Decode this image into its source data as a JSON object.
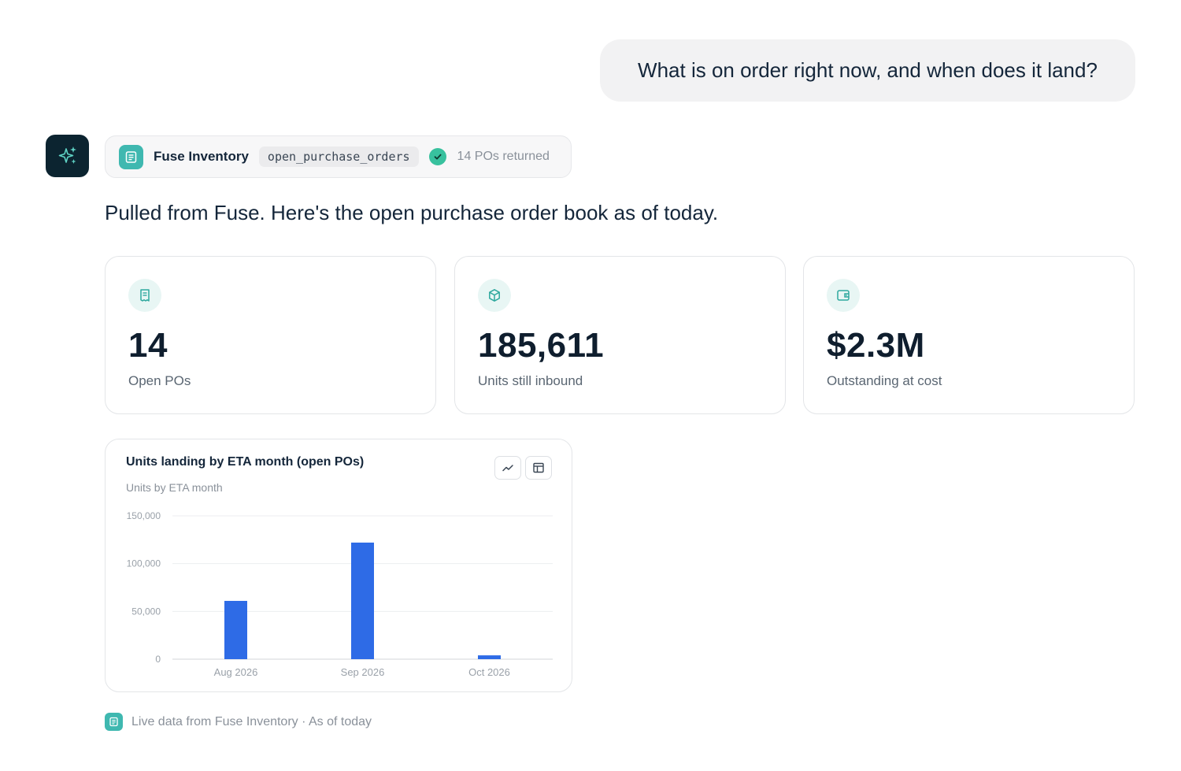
{
  "user_message": "What is on order right now, and when does it land?",
  "tool_call": {
    "source": "Fuse Inventory",
    "function": "open_purchase_orders",
    "status": "14 POs returned"
  },
  "assistant_message": "Pulled from Fuse. Here's the open purchase order book as of today.",
  "stats": [
    {
      "icon": "receipt-icon",
      "value": "14",
      "label": "Open POs"
    },
    {
      "icon": "package-icon",
      "value": "185,611",
      "label": "Units still inbound"
    },
    {
      "icon": "wallet-icon",
      "value": "$2.3M",
      "label": "Outstanding at cost"
    }
  ],
  "chart_card": {
    "title": "Units landing by ETA month (open POs)",
    "subtitle": "Units by ETA month",
    "buttons": [
      "line-chart-icon",
      "table-icon"
    ]
  },
  "chart_data": {
    "type": "bar",
    "categories": [
      "Aug 2026",
      "Sep 2026",
      "Oct 2026"
    ],
    "values": [
      61000,
      122000,
      4000
    ],
    "ylim": [
      0,
      150000
    ],
    "yticks": [
      0,
      50000,
      100000,
      150000
    ],
    "ytick_labels": [
      "0",
      "50,000",
      "100,000",
      "150,000"
    ],
    "grid": true,
    "legend": "none"
  },
  "colors": {
    "bar": "#2e6be6",
    "accent": "#3fb8b0",
    "check": "#38c19e",
    "avatar_bg": "#0c2430"
  },
  "footer": {
    "icon": "document-icon",
    "text": "Live data from Fuse Inventory · As of today"
  }
}
